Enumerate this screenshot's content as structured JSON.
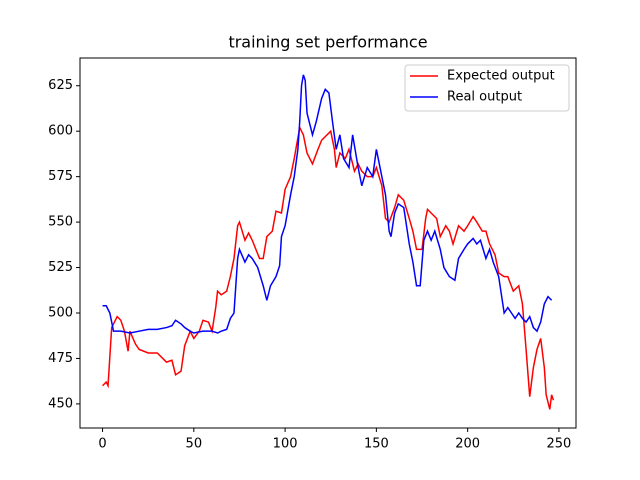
{
  "chart_data": {
    "type": "line",
    "title": "training set performance",
    "xlim": [
      -12.35,
      259.35
    ],
    "xticks": [
      0,
      50,
      100,
      150,
      200,
      250
    ],
    "ylim": [
      436.75,
      640.25
    ],
    "yticks": [
      450,
      475,
      500,
      525,
      550,
      575,
      600,
      625
    ],
    "legend": "upper right",
    "grid": false,
    "series": [
      {
        "name": "Expected output",
        "color": "#ff0000",
        "x": [
          0,
          2,
          3,
          5,
          8,
          10,
          12,
          14,
          15,
          18,
          20,
          25,
          30,
          35,
          38,
          40,
          43,
          45,
          48,
          50,
          53,
          55,
          58,
          60,
          62,
          63,
          65,
          68,
          70,
          72,
          74,
          75,
          78,
          80,
          82,
          84,
          86,
          88,
          90,
          93,
          95,
          98,
          100,
          103,
          105,
          108,
          110,
          112,
          115,
          118,
          120,
          122,
          125,
          127,
          128,
          130,
          133,
          135,
          138,
          140,
          142,
          145,
          148,
          150,
          153,
          155,
          157,
          160,
          162,
          165,
          168,
          170,
          172,
          175,
          177,
          178,
          180,
          183,
          185,
          188,
          190,
          192,
          195,
          198,
          200,
          203,
          205,
          208,
          210,
          212,
          215,
          217,
          220,
          222,
          225,
          228,
          230,
          232,
          234,
          236,
          238,
          240,
          242,
          243,
          245,
          246,
          247
        ],
        "values": [
          460,
          462,
          460,
          492,
          498,
          496,
          490,
          479,
          490,
          483,
          480,
          478,
          478,
          473,
          474,
          466,
          468,
          482,
          490,
          486,
          490,
          496,
          495,
          490,
          503,
          512,
          510,
          512,
          520,
          530,
          548,
          550,
          540,
          544,
          540,
          535,
          530,
          530,
          542,
          545,
          556,
          555,
          568,
          575,
          585,
          602,
          598,
          588,
          582,
          590,
          595,
          597,
          600,
          590,
          580,
          588,
          585,
          590,
          578,
          582,
          578,
          575,
          575,
          580,
          570,
          552,
          550,
          558,
          565,
          562,
          552,
          545,
          535,
          535,
          552,
          557,
          555,
          552,
          542,
          548,
          545,
          538,
          548,
          545,
          548,
          553,
          550,
          545,
          545,
          538,
          532,
          522,
          520,
          520,
          512,
          515,
          505,
          480,
          454,
          470,
          480,
          486,
          470,
          455,
          447,
          455,
          452
        ]
      },
      {
        "name": "Real output",
        "color": "#0000ff",
        "x": [
          0,
          2,
          4,
          6,
          10,
          15,
          20,
          25,
          30,
          35,
          38,
          40,
          43,
          45,
          48,
          50,
          55,
          60,
          63,
          65,
          68,
          70,
          72,
          73,
          74,
          75,
          78,
          80,
          82,
          85,
          88,
          90,
          92,
          95,
          97,
          98,
          100,
          103,
          105,
          107,
          108,
          109,
          110,
          111,
          112,
          115,
          117,
          120,
          122,
          124,
          126,
          128,
          130,
          132,
          135,
          137,
          140,
          142,
          145,
          148,
          150,
          152,
          155,
          157,
          158,
          160,
          162,
          165,
          168,
          170,
          172,
          174,
          176,
          178,
          180,
          182,
          185,
          187,
          190,
          193,
          195,
          198,
          200,
          203,
          205,
          207,
          210,
          212,
          214,
          217,
          220,
          222,
          224,
          226,
          228,
          230,
          232,
          234,
          236,
          238,
          240,
          242,
          244,
          246
        ],
        "values": [
          504,
          504,
          500,
          490,
          490,
          489,
          490,
          491,
          491,
          492,
          493,
          496,
          494,
          492,
          490,
          489,
          490,
          490,
          489,
          490,
          491,
          497,
          500,
          515,
          530,
          535,
          528,
          532,
          530,
          525,
          515,
          507,
          515,
          520,
          526,
          542,
          548,
          565,
          575,
          590,
          605,
          625,
          631,
          628,
          610,
          598,
          605,
          618,
          623,
          621,
          605,
          590,
          598,
          585,
          580,
          598,
          580,
          570,
          580,
          575,
          590,
          580,
          565,
          545,
          542,
          555,
          560,
          558,
          538,
          528,
          515,
          515,
          540,
          545,
          540,
          545,
          535,
          525,
          520,
          518,
          530,
          535,
          538,
          541,
          538,
          540,
          530,
          535,
          528,
          520,
          500,
          503,
          500,
          497,
          500,
          497,
          495,
          498,
          492,
          490,
          495,
          505,
          509,
          507
        ]
      }
    ]
  }
}
